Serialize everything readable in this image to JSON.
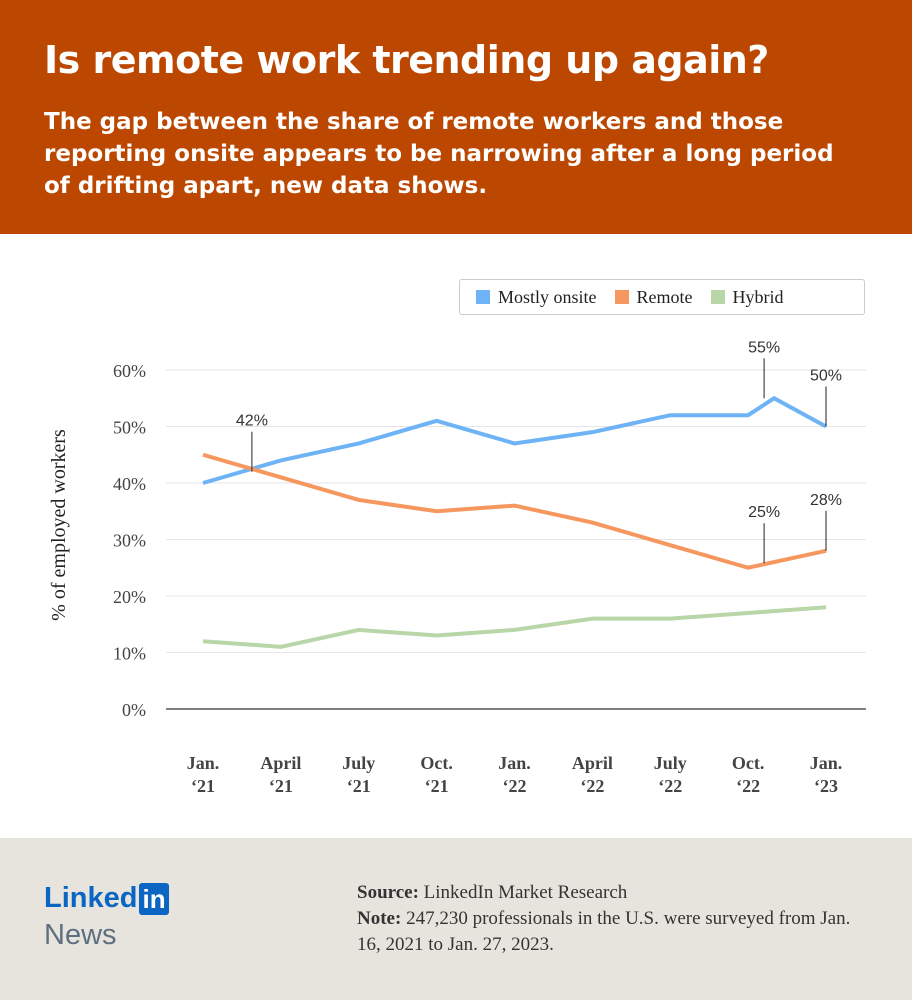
{
  "header": {
    "title": "Is remote work trending up again?",
    "subtitle": "The gap between the share of remote workers and those reporting onsite appears to be narrowing after a long period of drifting apart, new data shows."
  },
  "chart_data": {
    "type": "line",
    "ylabel": "% of employed workers",
    "ylim": [
      0,
      60
    ],
    "yticks": [
      "0%",
      "10%",
      "20%",
      "30%",
      "40%",
      "50%",
      "60%"
    ],
    "grid": true,
    "legend_placement": "top-right",
    "x_ticks": [
      {
        "line1": "Jan.",
        "line2": "‘21"
      },
      {
        "line1": "April",
        "line2": "‘21"
      },
      {
        "line1": "July",
        "line2": "‘21"
      },
      {
        "line1": "Oct.",
        "line2": "‘21"
      },
      {
        "line1": "Jan.",
        "line2": "‘22"
      },
      {
        "line1": "April",
        "line2": "‘22"
      },
      {
        "line1": "July",
        "line2": "‘22"
      },
      {
        "line1": "Oct.",
        "line2": "‘22"
      },
      {
        "line1": "Jan.",
        "line2": "‘23"
      }
    ],
    "series": [
      {
        "name": "Mostly onsite",
        "color": "#6DB3F5",
        "x": [
          "2021-01",
          "2021-04",
          "2021-07",
          "2021-10",
          "2022-01",
          "2022-04",
          "2022-07",
          "2022-10",
          "2022-11",
          "2023-01"
        ],
        "values": [
          40,
          44,
          47,
          51,
          47,
          49,
          52,
          52,
          55,
          50
        ]
      },
      {
        "name": "Remote",
        "color": "#F5975E",
        "x": [
          "2021-01",
          "2021-04",
          "2021-07",
          "2021-10",
          "2022-01",
          "2022-04",
          "2022-07",
          "2022-10",
          "2023-01"
        ],
        "values": [
          45,
          41,
          37,
          35,
          36,
          33,
          29,
          25,
          28
        ]
      },
      {
        "name": "Hybrid",
        "color": "#B8D6A8",
        "x": [
          "2021-01",
          "2021-04",
          "2021-07",
          "2021-10",
          "2022-01",
          "2022-04",
          "2022-07",
          "2022-10",
          "2023-01"
        ],
        "values": [
          12,
          11,
          14,
          13,
          14,
          16,
          16,
          17,
          18
        ]
      }
    ],
    "annotations": [
      {
        "text": "42%",
        "x": "2021-03",
        "value": 42
      },
      {
        "text": "55%",
        "x": "2022-11",
        "value": 55
      },
      {
        "text": "50%",
        "x": "2023-01",
        "value": 50
      },
      {
        "text": "25%",
        "x": "2022-11",
        "value": 25.8
      },
      {
        "text": "28%",
        "x": "2023-01",
        "value": 28
      }
    ]
  },
  "footer": {
    "logo_text": "Linkedin",
    "news": "News",
    "source_label": "Source:",
    "source": "LinkedIn Market Research",
    "note_label": "Note:",
    "note": "247,230 professionals in the U.S. were surveyed from Jan. 16, 2021 to Jan. 27, 2023."
  }
}
